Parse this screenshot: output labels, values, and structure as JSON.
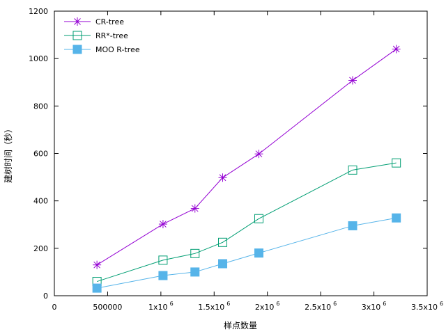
{
  "chart_data": {
    "type": "line",
    "xlabel": "样点数量",
    "ylabel": "建树时间（秒）",
    "xlim": [
      0,
      3500000
    ],
    "ylim": [
      0,
      1200
    ],
    "x_ticks": [
      {
        "value": 0,
        "base": "0",
        "exp": ""
      },
      {
        "value": 500000,
        "base": "500000",
        "exp": ""
      },
      {
        "value": 1000000,
        "base": "1x10",
        "exp": "6"
      },
      {
        "value": 1500000,
        "base": "1.5x10",
        "exp": "6"
      },
      {
        "value": 2000000,
        "base": "2x10",
        "exp": "6"
      },
      {
        "value": 2500000,
        "base": "2.5x10",
        "exp": "6"
      },
      {
        "value": 3000000,
        "base": "3x10",
        "exp": "6"
      },
      {
        "value": 3500000,
        "base": "3.5x10",
        "exp": "6"
      }
    ],
    "y_ticks": [
      0,
      200,
      400,
      600,
      800,
      1000,
      1200
    ],
    "grid": false,
    "legend_position": "top-left",
    "x": [
      400000,
      1020000,
      1320000,
      1580000,
      1920000,
      2800000,
      3210000
    ],
    "series": [
      {
        "name": "CR-tree",
        "marker": "star",
        "color": "#9400d3",
        "values": [
          130,
          302,
          368,
          498,
          598,
          908,
          1040
        ]
      },
      {
        "name": "RR*-tree",
        "marker": "open-square",
        "color": "#009e73",
        "values": [
          60,
          150,
          178,
          225,
          325,
          530,
          560
        ]
      },
      {
        "name": "MOO R-tree",
        "marker": "filled-square",
        "color": "#56b4e9",
        "values": [
          32,
          85,
          100,
          135,
          180,
          295,
          328
        ]
      }
    ]
  }
}
